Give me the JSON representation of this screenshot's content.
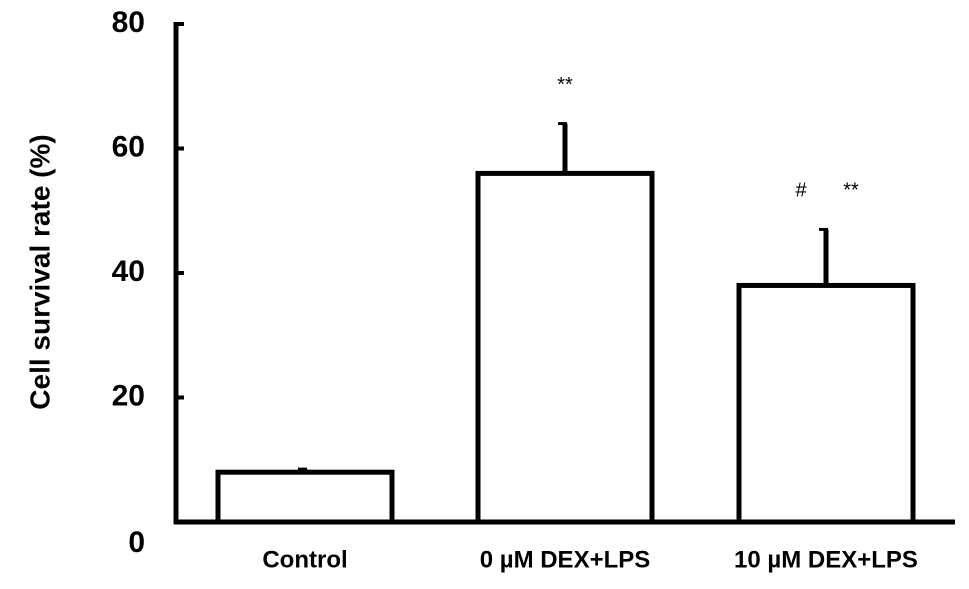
{
  "chart_data": {
    "type": "bar",
    "y_label": "Cell survival rate (%)",
    "categories": [
      "Control",
      "0 µM DEX+LPS",
      "10 µM DEX+LPS"
    ],
    "values": [
      8,
      56,
      38
    ],
    "errors": [
      0.5,
      8,
      9
    ],
    "color": "#000000",
    "fill": "#ffffff",
    "ylim": [
      0,
      80
    ],
    "yticks": [
      0,
      20,
      40,
      60,
      80
    ],
    "annotations": [
      {
        "category": 1,
        "text": "**"
      },
      {
        "category": 2,
        "text": "#"
      },
      {
        "category": 2,
        "text": "**"
      }
    ]
  }
}
